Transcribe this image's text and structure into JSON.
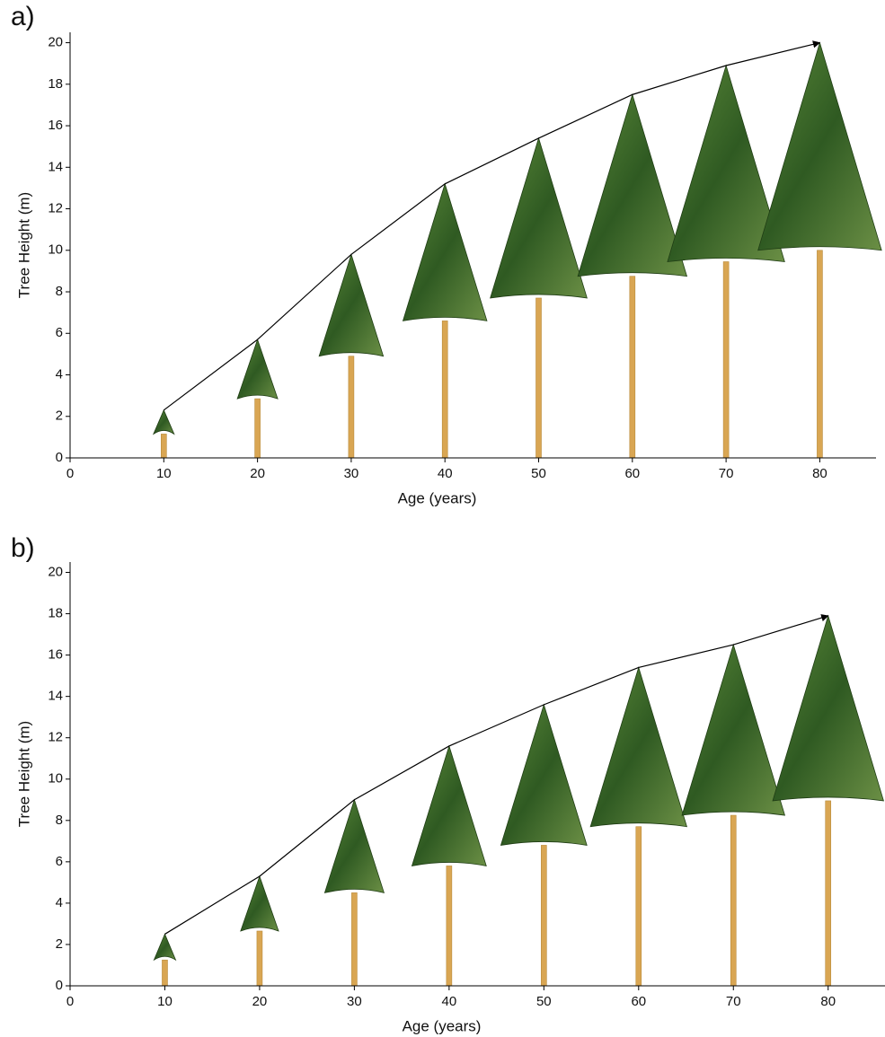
{
  "chart_data": [
    {
      "type": "line",
      "panel": "a)",
      "xlabel": "Age (years)",
      "ylabel": "Tree Height (m)",
      "x": [
        10,
        20,
        30,
        40,
        50,
        60,
        70,
        80
      ],
      "values": [
        2.3,
        5.7,
        9.8,
        13.2,
        15.4,
        17.5,
        18.9,
        20.0
      ],
      "color": "#000000",
      "xlim": [
        0,
        86
      ],
      "xticks": [
        0,
        10,
        20,
        30,
        40,
        50,
        60,
        70,
        80
      ],
      "ylim": [
        0,
        20.5
      ],
      "yticks": [
        0,
        2,
        4,
        6,
        8,
        10,
        12,
        14,
        16,
        18,
        20
      ]
    },
    {
      "type": "line",
      "panel": "b)",
      "xlabel": "Age (years)",
      "ylabel": "Tree Height (m)",
      "x": [
        10,
        20,
        30,
        40,
        50,
        60,
        70,
        80
      ],
      "values": [
        2.5,
        5.3,
        9.0,
        11.6,
        13.6,
        15.4,
        16.5,
        17.9
      ],
      "color": "#000000",
      "xlim": [
        0,
        86
      ],
      "xticks": [
        0,
        10,
        20,
        30,
        40,
        50,
        60,
        70,
        80
      ],
      "ylim": [
        0,
        20.5
      ],
      "yticks": [
        0,
        2,
        4,
        6,
        8,
        10,
        12,
        14,
        16,
        18,
        20
      ]
    }
  ]
}
